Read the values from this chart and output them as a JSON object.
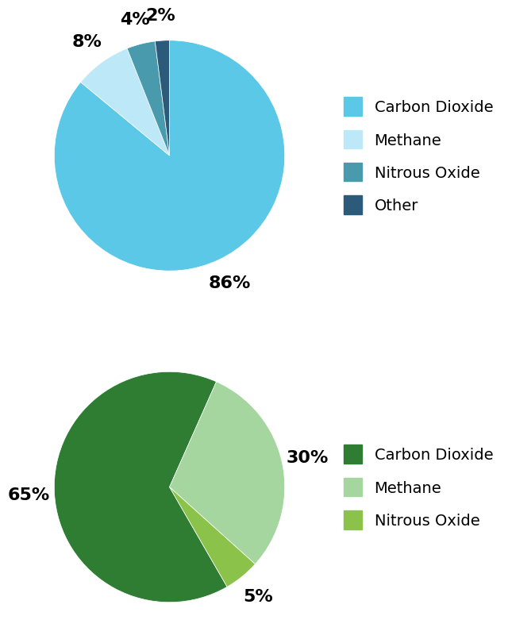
{
  "chart1": {
    "values": [
      86,
      8,
      4,
      2
    ],
    "labels": [
      "Carbon Dioxide",
      "Methane",
      "Nitrous Oxide",
      "Other"
    ],
    "colors": [
      "#5BC8E8",
      "#BDE8F8",
      "#4A9AAD",
      "#2B5A7A"
    ],
    "pct_labels": [
      "86%",
      "8%",
      "4%",
      "2%"
    ],
    "startangle": 90
  },
  "chart2": {
    "values": [
      65,
      30,
      5
    ],
    "labels": [
      "Carbon Dioxide",
      "Methane",
      "Nitrous Oxide"
    ],
    "colors": [
      "#2E7D32",
      "#A5D6A0",
      "#8BC34A"
    ],
    "pct_labels": [
      "65%",
      "30%",
      "5%"
    ],
    "startangle": -60
  },
  "legend_fontsize": 14,
  "pct_fontsize": 16,
  "background_color": "#FFFFFF"
}
